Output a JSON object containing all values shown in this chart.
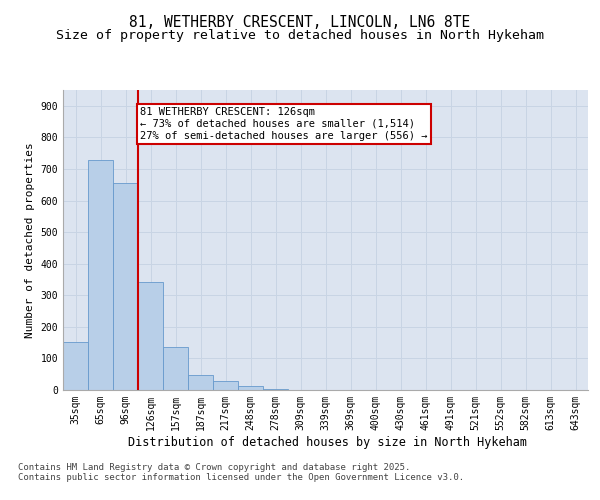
{
  "title1": "81, WETHERBY CRESCENT, LINCOLN, LN6 8TE",
  "title2": "Size of property relative to detached houses in North Hykeham",
  "xlabel": "Distribution of detached houses by size in North Hykeham",
  "ylabel": "Number of detached properties",
  "categories": [
    "35sqm",
    "65sqm",
    "96sqm",
    "126sqm",
    "157sqm",
    "187sqm",
    "217sqm",
    "248sqm",
    "278sqm",
    "309sqm",
    "339sqm",
    "369sqm",
    "400sqm",
    "430sqm",
    "461sqm",
    "491sqm",
    "521sqm",
    "552sqm",
    "582sqm",
    "613sqm",
    "643sqm"
  ],
  "values": [
    152,
    728,
    655,
    343,
    137,
    46,
    30,
    12,
    3,
    0,
    0,
    0,
    0,
    0,
    0,
    0,
    0,
    0,
    0,
    0,
    0
  ],
  "bar_color": "#b8cfe8",
  "bar_edge_color": "#6699cc",
  "vline_color": "#cc0000",
  "annotation_text": "81 WETHERBY CRESCENT: 126sqm\n← 73% of detached houses are smaller (1,514)\n27% of semi-detached houses are larger (556) →",
  "annotation_box_color": "#cc0000",
  "ylim": [
    0,
    950
  ],
  "yticks": [
    0,
    100,
    200,
    300,
    400,
    500,
    600,
    700,
    800,
    900
  ],
  "grid_color": "#c8d4e4",
  "background_color": "#dce4f0",
  "footer": "Contains HM Land Registry data © Crown copyright and database right 2025.\nContains public sector information licensed under the Open Government Licence v3.0.",
  "title1_fontsize": 10.5,
  "title2_fontsize": 9.5,
  "xlabel_fontsize": 8.5,
  "ylabel_fontsize": 8,
  "tick_fontsize": 7,
  "footer_fontsize": 6.5,
  "ann_fontsize": 7.5
}
